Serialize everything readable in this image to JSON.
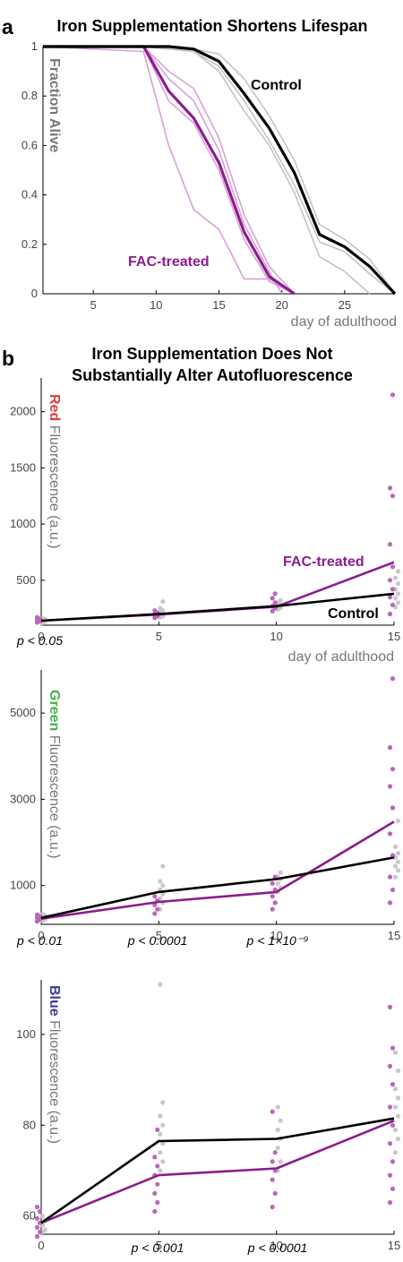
{
  "panels": {
    "a": {
      "letter": "a",
      "title": "Iron Supplementation Shortens Lifespan",
      "ylabel": "Fraction Alive",
      "xlabel": "day of adulthood",
      "control_label": "Control",
      "treated_label": "FAC-treated"
    },
    "b": {
      "letter": "b",
      "title_line1": "Iron Supplementation Does Not",
      "title_line2": "Substantially Alter Autofluorescence",
      "xlabel": "day of adulthood",
      "control_label": "Control",
      "treated_label": "FAC-treated",
      "red_ylabel_color_word": "Red",
      "green_ylabel_color_word": "Green",
      "blue_ylabel_color_word": "Blue",
      "ylabel_rest": "Fluorescence (a.u.)",
      "p_red_0": "p < 0.05",
      "p_green_0": "p < 0.01",
      "p_green_5": "p < 0.0001",
      "p_green_10": "p < 1×10⁻⁹",
      "p_blue_5": "p < 0.001",
      "p_blue_10": "p < 0.0001"
    }
  },
  "colors": {
    "control": "#000000",
    "treated": "#8c1c8c",
    "control_replicate": "#c4c4c4",
    "treated_replicate": "#d9a0d9",
    "control_dot": "#c8c8c8",
    "treated_dot": "#b968b9",
    "axis_label": "#777777",
    "red_word": "#e03a3a",
    "green_word": "#43b349",
    "blue_word": "#3b3b9c"
  },
  "chart_data": [
    {
      "type": "line",
      "panel": "a",
      "title": "Iron Supplementation Shortens Lifespan",
      "xlabel": "day of adulthood",
      "ylabel": "Fraction Alive",
      "xlim": [
        1,
        29
      ],
      "ylim": [
        0,
        1
      ],
      "xticks": [
        5,
        10,
        15,
        20,
        25
      ],
      "yticks": [
        0,
        0.2,
        0.4,
        0.6,
        0.8,
        1
      ],
      "series": [
        {
          "name": "Control",
          "role": "control_mean",
          "x": [
            1,
            9,
            11,
            13,
            15,
            17,
            19,
            21,
            23,
            25,
            27,
            29
          ],
          "y": [
            1,
            1,
            1,
            0.99,
            0.94,
            0.81,
            0.67,
            0.49,
            0.24,
            0.19,
            0.11,
            0
          ]
        },
        {
          "role": "control_replicate",
          "x": [
            1,
            9,
            11,
            13,
            15,
            17,
            19,
            21,
            23,
            25,
            27,
            29
          ],
          "y": [
            1,
            1,
            1,
            0.99,
            0.97,
            0.87,
            0.72,
            0.54,
            0.28,
            0.22,
            0.14,
            0
          ]
        },
        {
          "role": "control_replicate",
          "x": [
            1,
            9,
            11,
            13,
            15,
            17,
            19,
            21,
            23,
            25,
            27,
            29
          ],
          "y": [
            1,
            1,
            0.99,
            0.98,
            0.92,
            0.78,
            0.62,
            0.44,
            0.21,
            0.17,
            0.08,
            0
          ]
        },
        {
          "role": "control_replicate",
          "x": [
            1,
            9,
            11,
            13,
            15,
            17,
            19,
            21,
            23,
            25,
            27
          ],
          "y": [
            1,
            1,
            1,
            0.98,
            0.9,
            0.74,
            0.6,
            0.41,
            0.15,
            0.09,
            0
          ]
        },
        {
          "name": "FAC-treated",
          "role": "treated_mean",
          "x": [
            1,
            9,
            11,
            13,
            15,
            17,
            19,
            21
          ],
          "y": [
            1,
            1,
            0.82,
            0.71,
            0.53,
            0.25,
            0.07,
            0
          ]
        },
        {
          "role": "treated_replicate",
          "x": [
            1,
            9,
            11,
            13,
            15,
            17,
            19,
            21
          ],
          "y": [
            1,
            1,
            0.9,
            0.83,
            0.63,
            0.32,
            0.11,
            0
          ]
        },
        {
          "role": "treated_replicate",
          "x": [
            1,
            9,
            11,
            13,
            15,
            17,
            19,
            20
          ],
          "y": [
            1,
            1,
            0.87,
            0.78,
            0.58,
            0.28,
            0.09,
            0
          ]
        },
        {
          "role": "treated_replicate",
          "x": [
            1,
            9,
            11,
            13,
            15,
            17,
            19,
            21
          ],
          "y": [
            1,
            0.98,
            0.6,
            0.34,
            0.26,
            0.06,
            0.06,
            0
          ]
        },
        {
          "role": "treated_replicate",
          "x": [
            1,
            9,
            11,
            13,
            15,
            17,
            19,
            21
          ],
          "y": [
            1,
            1,
            0.78,
            0.69,
            0.5,
            0.22,
            0.05,
            0
          ]
        }
      ]
    },
    {
      "type": "scatter",
      "panel": "b-red",
      "title": "Iron Supplementation Does Not Substantially Alter Autofluorescence",
      "xlabel": "day of adulthood",
      "ylabel": "Red Fluorescence (a.u.)",
      "xlim": [
        0,
        15
      ],
      "ylim": [
        100,
        2300
      ],
      "xticks": [
        0,
        5,
        10,
        15
      ],
      "yticks": [
        500,
        1000,
        1500,
        2000
      ],
      "means": {
        "x": [
          0,
          5,
          10,
          15
        ],
        "Control": [
          140,
          200,
          270,
          380
        ],
        "FAC-treated": [
          140,
          195,
          265,
          660
        ]
      },
      "points": {
        "Control": [
          {
            "x": 0,
            "values": [
              120,
              130,
              140,
              150,
              160
            ]
          },
          {
            "x": 5,
            "values": [
              170,
              180,
              190,
              200,
              215,
              230,
              250,
              310
            ]
          },
          {
            "x": 10,
            "values": [
              240,
              255,
              265,
              280,
              300,
              320
            ]
          },
          {
            "x": 15,
            "values": [
              260,
              300,
              340,
              380,
              420,
              470,
              520,
              580
            ]
          }
        ],
        "FAC-treated": [
          {
            "x": 0,
            "values": [
              125,
              135,
              145,
              155,
              170
            ]
          },
          {
            "x": 5,
            "values": [
              165,
              180,
              195,
              210,
              230
            ]
          },
          {
            "x": 10,
            "values": [
              225,
              250,
              270,
              300,
              340,
              380
            ]
          },
          {
            "x": 15,
            "values": [
              200,
              280,
              350,
              420,
              500,
              620,
              820,
              1250,
              1320,
              2150
            ]
          }
        ]
      }
    },
    {
      "type": "scatter",
      "panel": "b-green",
      "ylabel": "Green Fluorescence (a.u.)",
      "xlim": [
        0,
        15
      ],
      "ylim": [
        100,
        6000
      ],
      "xticks": [
        0,
        5,
        10,
        15
      ],
      "yticks": [
        1000,
        3000,
        5000
      ],
      "means": {
        "x": [
          0,
          5,
          10,
          15
        ],
        "Control": [
          250,
          850,
          1150,
          1650
        ],
        "FAC-treated": [
          230,
          620,
          850,
          2480
        ]
      },
      "points": {
        "Control": [
          {
            "x": 0,
            "values": [
              180,
              220,
              260,
              300,
              330
            ]
          },
          {
            "x": 5,
            "values": [
              450,
              600,
              700,
              800,
              900,
              1000,
              1100,
              1450
            ]
          },
          {
            "x": 10,
            "values": [
              850,
              950,
              1050,
              1150,
              1200,
              1300
            ]
          },
          {
            "x": 15,
            "values": [
              1200,
              1350,
              1450,
              1550,
              1650,
              1750,
              1900,
              2500
            ]
          }
        ],
        "FAC-treated": [
          {
            "x": 0,
            "values": [
              170,
              210,
              250,
              290,
              320
            ]
          },
          {
            "x": 5,
            "values": [
              350,
              450,
              550,
              650,
              750
            ]
          },
          {
            "x": 10,
            "values": [
              450,
              600,
              750,
              900,
              1050,
              1200
            ]
          },
          {
            "x": 15,
            "values": [
              600,
              900,
              1200,
              1700,
              2200,
              2800,
              3300,
              3700,
              4200,
              5800
            ]
          }
        ]
      }
    },
    {
      "type": "scatter",
      "panel": "b-blue",
      "ylabel": "Blue Fluorescence (a.u.)",
      "xlim": [
        0,
        15
      ],
      "ylim": [
        56,
        112
      ],
      "xticks": [
        0,
        5,
        10,
        15
      ],
      "yticks": [
        60,
        80,
        100
      ],
      "means": {
        "x": [
          0,
          5,
          10,
          15
        ],
        "Control": [
          58.5,
          76.5,
          77,
          81.5
        ],
        "FAC-treated": [
          58.5,
          69,
          70.5,
          81
        ]
      },
      "points": {
        "Control": [
          {
            "x": 0,
            "values": [
              56.5,
              57,
              58,
              59,
              60
            ]
          },
          {
            "x": 5,
            "values": [
              70,
              72,
              74,
              76,
              78,
              80,
              82,
              85,
              111
            ]
          },
          {
            "x": 10,
            "values": [
              70,
              72,
              75,
              77,
              79,
              81,
              84
            ]
          },
          {
            "x": 15,
            "values": [
              74,
              77,
              79,
              82,
              84,
              86,
              88,
              92,
              96
            ]
          }
        ],
        "FAC-treated": [
          {
            "x": 0,
            "values": [
              55.5,
              56.5,
              57.5,
              58.5,
              59.5,
              61,
              62
            ]
          },
          {
            "x": 5,
            "values": [
              61,
              63,
              65,
              67,
              69,
              71,
              73,
              79
            ]
          },
          {
            "x": 10,
            "values": [
              62,
              65,
              68,
              70,
              72,
              74,
              83
            ]
          },
          {
            "x": 15,
            "values": [
              63,
              66,
              69,
              72,
              76,
              80,
              84,
              89,
              93,
              97,
              106
            ]
          }
        ]
      }
    }
  ]
}
